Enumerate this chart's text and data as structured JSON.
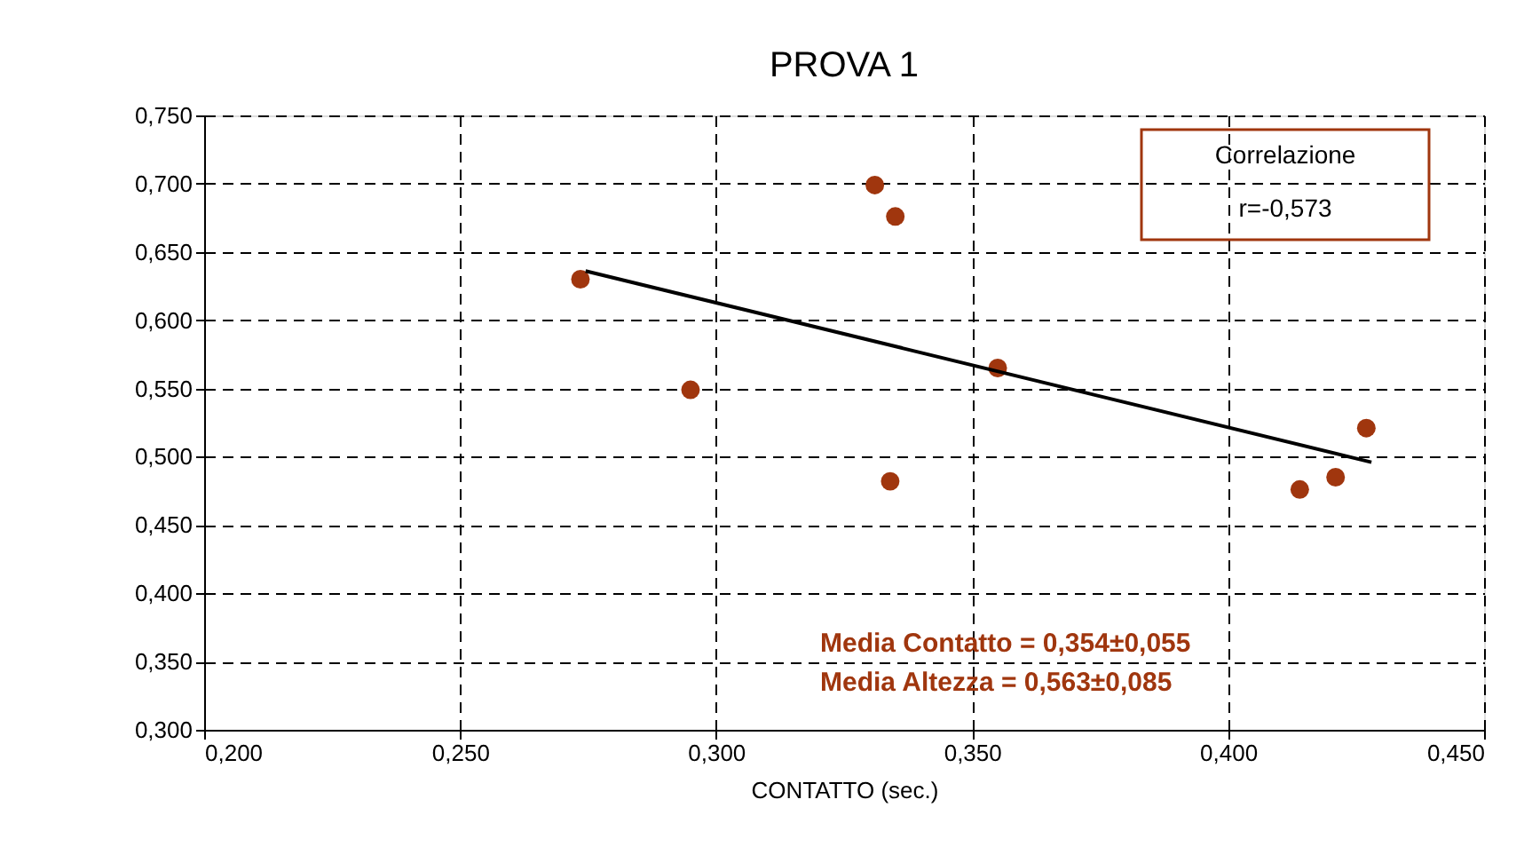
{
  "chart_data": {
    "type": "scatter",
    "title": "PROVA 1",
    "xlabel": "CONTATTO (sec.)",
    "xlim": [
      0.2,
      0.45
    ],
    "ylim": [
      0.3,
      0.75
    ],
    "xticks": [
      {
        "value": 0.2,
        "label": "0,200"
      },
      {
        "value": 0.25,
        "label": "0,250"
      },
      {
        "value": 0.3,
        "label": "0,300"
      },
      {
        "value": 0.35,
        "label": "0,350"
      },
      {
        "value": 0.4,
        "label": "0,400"
      },
      {
        "value": 0.45,
        "label": "0,450"
      }
    ],
    "yticks": [
      {
        "value": 0.3,
        "label": "0,300"
      },
      {
        "value": 0.35,
        "label": "0,350"
      },
      {
        "value": 0.4,
        "label": "0,400"
      },
      {
        "value": 0.45,
        "label": "0,450"
      },
      {
        "value": 0.5,
        "label": "0,500"
      },
      {
        "value": 0.55,
        "label": "0,550"
      },
      {
        "value": 0.6,
        "label": "0,600"
      },
      {
        "value": 0.65,
        "label": "0,650"
      },
      {
        "value": 0.7,
        "label": "0,700"
      },
      {
        "value": 0.75,
        "label": "0,750"
      }
    ],
    "grid": true,
    "series": [
      {
        "type": "scatter",
        "marker": "circle",
        "color": "#a0360e",
        "x": [
          0.2735,
          0.295,
          0.331,
          0.335,
          0.334,
          0.355,
          0.414,
          0.421,
          0.427
        ],
        "values": [
          0.63,
          0.549,
          0.699,
          0.676,
          0.482,
          0.565,
          0.476,
          0.485,
          0.521
        ]
      },
      {
        "type": "line",
        "color": "#000000",
        "x": [
          0.2745,
          0.428
        ],
        "values": [
          0.636,
          0.496
        ]
      }
    ],
    "annotations": [
      "Correlazione\nr=-0,573",
      "Media Contatto = 0,354±0,055\nMedia Altezza = 0,563±0,085"
    ]
  }
}
